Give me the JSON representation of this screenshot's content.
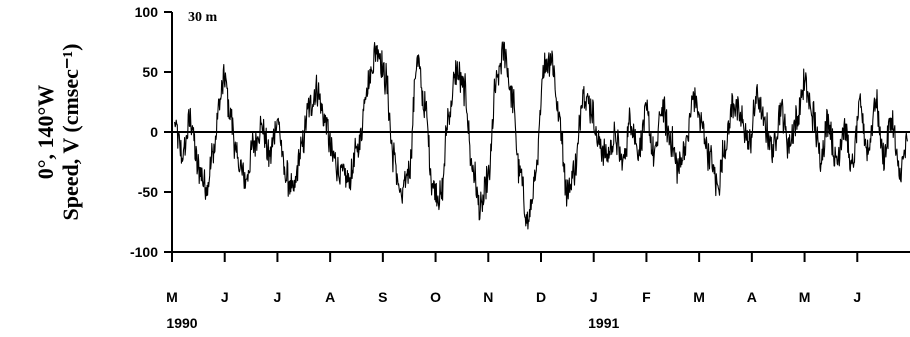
{
  "chart_data": {
    "type": "line",
    "panel_label": "30 m",
    "ylabel_line1": "0°, 140°W",
    "ylabel_line2": "Speed, V (cmsec⁻¹)",
    "ylim": [
      -100,
      100
    ],
    "yticks": [
      100,
      50,
      0,
      -50,
      -100
    ],
    "xlim": [
      0,
      14
    ],
    "x_unit": "months since 1990-05-01",
    "month_ticks": [
      "M",
      "J",
      "J",
      "A",
      "S",
      "O",
      "N",
      "D",
      "J",
      "F",
      "M",
      "A",
      "M",
      "J"
    ],
    "year_labels": [
      {
        "text": "1990",
        "at_month_index": 0
      },
      {
        "text": "1991",
        "at_month_index": 8
      }
    ],
    "zero_line": true,
    "grid": false,
    "series": [
      {
        "x": [
          0.05,
          0.2,
          0.35,
          0.5,
          0.65,
          0.8,
          0.9,
          1.0,
          1.1,
          1.25,
          1.4,
          1.55,
          1.7,
          1.85,
          2.0,
          2.15,
          2.3,
          2.45,
          2.6,
          2.75,
          2.9,
          3.05,
          3.2,
          3.35,
          3.55,
          3.7,
          3.9,
          4.05,
          4.2,
          4.35,
          4.5,
          4.65,
          4.8,
          4.95,
          5.1,
          5.25,
          5.4,
          5.55,
          5.7,
          5.85,
          6.0,
          6.15,
          6.3,
          6.45,
          6.6,
          6.75,
          6.9,
          7.05,
          7.2,
          7.35,
          7.5,
          7.65,
          7.8,
          7.95,
          8.1,
          8.25,
          8.4,
          8.55,
          8.7,
          8.85,
          9.0,
          9.15,
          9.3,
          9.45,
          9.6,
          9.75,
          9.9,
          10.05,
          10.2,
          10.35,
          10.5,
          10.65,
          10.8,
          10.95,
          11.1,
          11.25,
          11.4,
          11.55,
          11.7,
          11.85,
          12.0,
          12.15,
          12.3,
          12.45,
          12.6,
          12.75,
          12.9,
          13.05,
          13.2,
          13.35,
          13.5,
          13.65,
          13.8,
          13.95
        ],
        "y": [
          5,
          -20,
          10,
          -30,
          -45,
          -15,
          25,
          45,
          15,
          -25,
          -40,
          -10,
          5,
          -20,
          10,
          -35,
          -50,
          -15,
          20,
          35,
          10,
          -20,
          -35,
          -40,
          -10,
          40,
          70,
          45,
          -20,
          -55,
          -30,
          60,
          20,
          -45,
          -55,
          15,
          50,
          35,
          -30,
          -65,
          -40,
          40,
          68,
          30,
          -35,
          -75,
          -40,
          55,
          62,
          10,
          -50,
          -30,
          35,
          20,
          -10,
          -20,
          -5,
          -25,
          10,
          -15,
          15,
          -20,
          20,
          -5,
          -30,
          -10,
          30,
          5,
          -20,
          -45,
          -10,
          25,
          10,
          -10,
          30,
          5,
          -15,
          20,
          -10,
          10,
          40,
          15,
          -20,
          10,
          -25,
          5,
          -30,
          20,
          -15,
          25,
          -20,
          10,
          -35,
          -10
        ]
      }
    ]
  }
}
